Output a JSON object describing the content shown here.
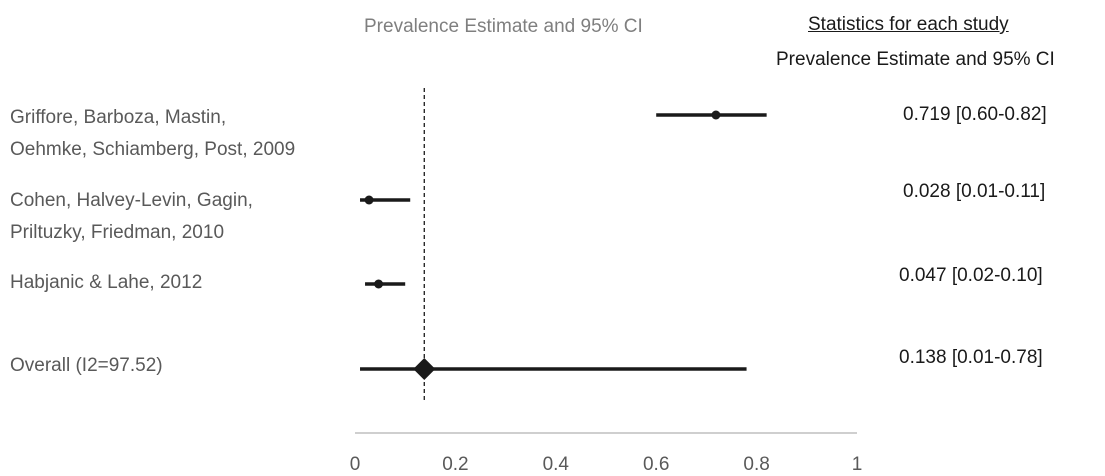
{
  "header": {
    "plot_title": "Prevalence Estimate and 95% CI",
    "stats_title": "Statistics for each study",
    "stats_subtitle": "Prevalence Estimate and 95% CI"
  },
  "chart_data": {
    "type": "forest",
    "xlim": [
      0,
      1
    ],
    "x_ticks": [
      "0",
      "0.2",
      "0.4",
      "0.6",
      "0.8",
      "1"
    ],
    "reference_line": 0.138,
    "studies": [
      {
        "label_lines": [
          "Griffore, Barboza, Mastin,",
          "Oehmke, Schiamberg, Post, 2009"
        ],
        "estimate": 0.719,
        "lower": 0.6,
        "upper": 0.82,
        "stat": "0.719 [0.60-0.82]",
        "marker": "dot"
      },
      {
        "label_lines": [
          "Cohen, Halvey-Levin, Gagin,",
          "Priltuzky, Friedman, 2010"
        ],
        "estimate": 0.028,
        "lower": 0.01,
        "upper": 0.11,
        "stat": "0.028 [0.01-0.11]",
        "marker": "dot"
      },
      {
        "label_lines": [
          "Habjanic & Lahe, 2012"
        ],
        "estimate": 0.047,
        "lower": 0.02,
        "upper": 0.1,
        "stat": "0.047 [0.02-0.10]",
        "marker": "dot"
      },
      {
        "label_lines": [
          "Overall (I2=97.52)"
        ],
        "estimate": 0.138,
        "lower": 0.01,
        "upper": 0.78,
        "stat": "0.138 [0.01-0.78]",
        "marker": "diamond"
      }
    ],
    "colors": {
      "marks": "#1a1a1a",
      "axis": "#bfbfbf",
      "labels": "#595959"
    }
  }
}
